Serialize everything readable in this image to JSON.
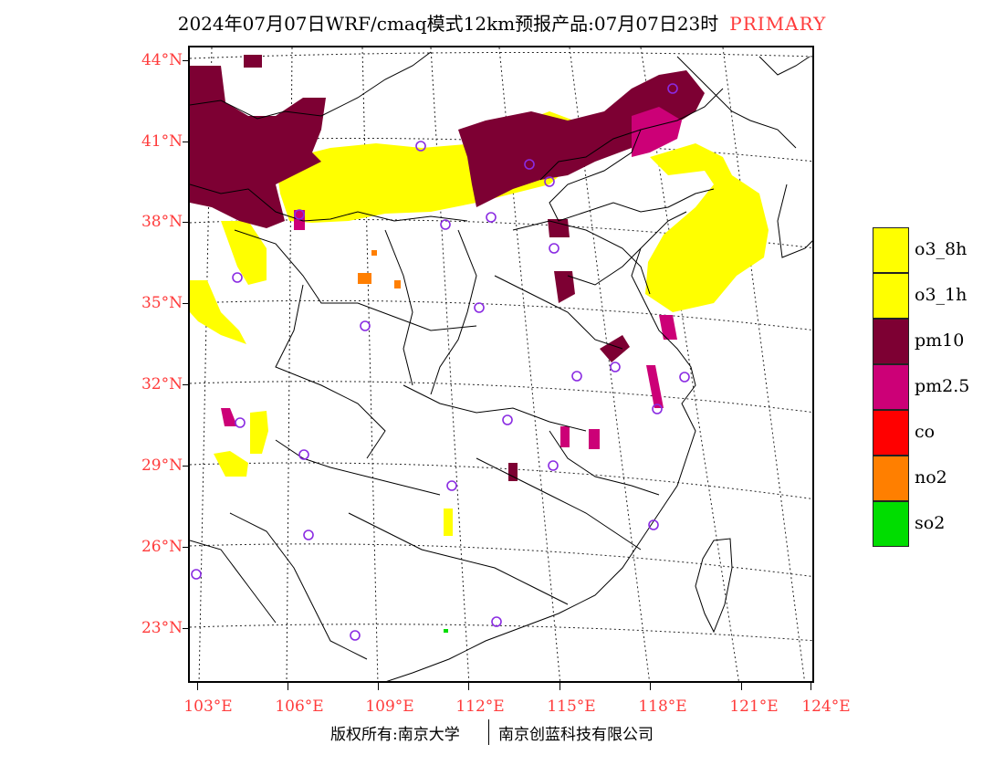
{
  "header": {
    "title": "2024年07月07日WRF/cmaq模式12km预报产品:07月07日23时",
    "product": "PRIMARY"
  },
  "map": {
    "lat_labels": [
      "44°N",
      "41°N",
      "38°N",
      "35°N",
      "32°N",
      "29°N",
      "26°N",
      "23°N"
    ],
    "lon_labels": [
      "103°E",
      "106°E",
      "109°E",
      "112°E",
      "115°E",
      "118°E",
      "121°E",
      "124°E"
    ]
  },
  "legend": {
    "items": [
      {
        "label": "o3_8h",
        "color": "#ffff00"
      },
      {
        "label": "o3_1h",
        "color": "#ffff00"
      },
      {
        "label": "pm10",
        "color": "#7d0033"
      },
      {
        "label": "pm2.5",
        "color": "#cc0077"
      },
      {
        "label": "co",
        "color": "#ff0000"
      },
      {
        "label": "no2",
        "color": "#ff7f00"
      },
      {
        "label": "so2",
        "color": "#00dd00"
      }
    ]
  },
  "footer": {
    "left": "版权所有:南京大学",
    "right": "南京创蓝科技有限公司"
  },
  "colors": {
    "axis_label": "#ff3b3b",
    "station_marker": "#8a2be2",
    "o3": "#ffff00",
    "pm10": "#7d0033",
    "pm25": "#cc0077",
    "no2": "#ff7f00",
    "so2": "#00dd00"
  }
}
